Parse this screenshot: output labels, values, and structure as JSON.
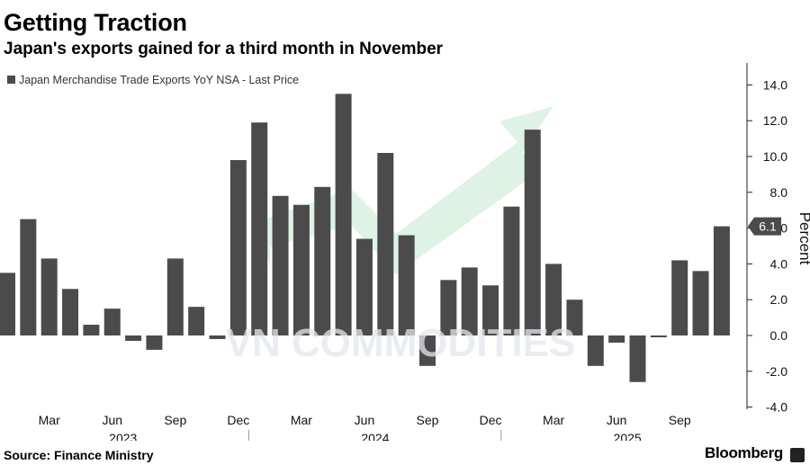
{
  "title": "Getting Traction",
  "subtitle": "Japan's exports gained for a third month in November",
  "source": "Source: Finance Ministry",
  "brand": "Bloomberg",
  "watermark": "VN COMMODITIES",
  "colors": {
    "bar": "#4b4b4b",
    "axis": "#222222",
    "watermark": "#e2e5ec",
    "arrow": "#dff2e6",
    "background": "#ffffff"
  },
  "chart_data": {
    "type": "bar",
    "title": "Getting Traction",
    "subtitle": "Japan's exports gained for a third month in November",
    "legend": "Japan Merchandise Trade Exports YoY NSA - Last Price",
    "legend_position": "top-left",
    "ylabel": "Percent",
    "ylim": [
      -4,
      14
    ],
    "yticks": [
      14.0,
      12.0,
      10.0,
      8.0,
      6.0,
      4.0,
      2.0,
      0.0,
      -2.0,
      -4.0
    ],
    "ytick_labels": [
      "14.0",
      "12.0",
      "10.0",
      "8.0",
      "6.0",
      "4.0",
      "2.0",
      "0.0",
      "-2.0",
      "-4.0"
    ],
    "last_value": 6.1,
    "last_value_label": "6.1",
    "grid": false,
    "categories": [
      "2023-01",
      "2023-02",
      "2023-03",
      "2023-04",
      "2023-05",
      "2023-06",
      "2023-07",
      "2023-08",
      "2023-09",
      "2023-10",
      "2023-11",
      "2023-12",
      "2024-01",
      "2024-02",
      "2024-03",
      "2024-04",
      "2024-05",
      "2024-06",
      "2024-07",
      "2024-08",
      "2024-09",
      "2024-10",
      "2024-11",
      "2024-12",
      "2025-01",
      "2025-02",
      "2025-03",
      "2025-04",
      "2025-05",
      "2025-06",
      "2025-07",
      "2025-08",
      "2025-09",
      "2025-10",
      "2025-11"
    ],
    "values": [
      3.5,
      6.5,
      4.3,
      2.6,
      0.6,
      1.5,
      -0.3,
      -0.8,
      4.3,
      1.6,
      -0.2,
      9.8,
      11.9,
      7.8,
      7.3,
      8.3,
      13.5,
      5.4,
      10.2,
      5.6,
      -1.7,
      3.1,
      3.8,
      2.8,
      7.2,
      11.5,
      4.0,
      2.0,
      -1.7,
      -0.4,
      -2.6,
      -0.1,
      4.2,
      3.6,
      6.1
    ],
    "x_month_labels": [
      {
        "index": 2,
        "label": "Mar"
      },
      {
        "index": 5,
        "label": "Jun"
      },
      {
        "index": 8,
        "label": "Sep"
      },
      {
        "index": 11,
        "label": "Dec"
      },
      {
        "index": 14,
        "label": "Mar"
      },
      {
        "index": 17,
        "label": "Jun"
      },
      {
        "index": 20,
        "label": "Sep"
      },
      {
        "index": 23,
        "label": "Dec"
      },
      {
        "index": 26,
        "label": "Mar"
      },
      {
        "index": 29,
        "label": "Jun"
      },
      {
        "index": 32,
        "label": "Sep"
      }
    ],
    "x_year_labels": [
      {
        "index": 5,
        "label": "2023"
      },
      {
        "index": 17,
        "label": "2024"
      },
      {
        "index": 29,
        "label": "2025"
      }
    ]
  }
}
